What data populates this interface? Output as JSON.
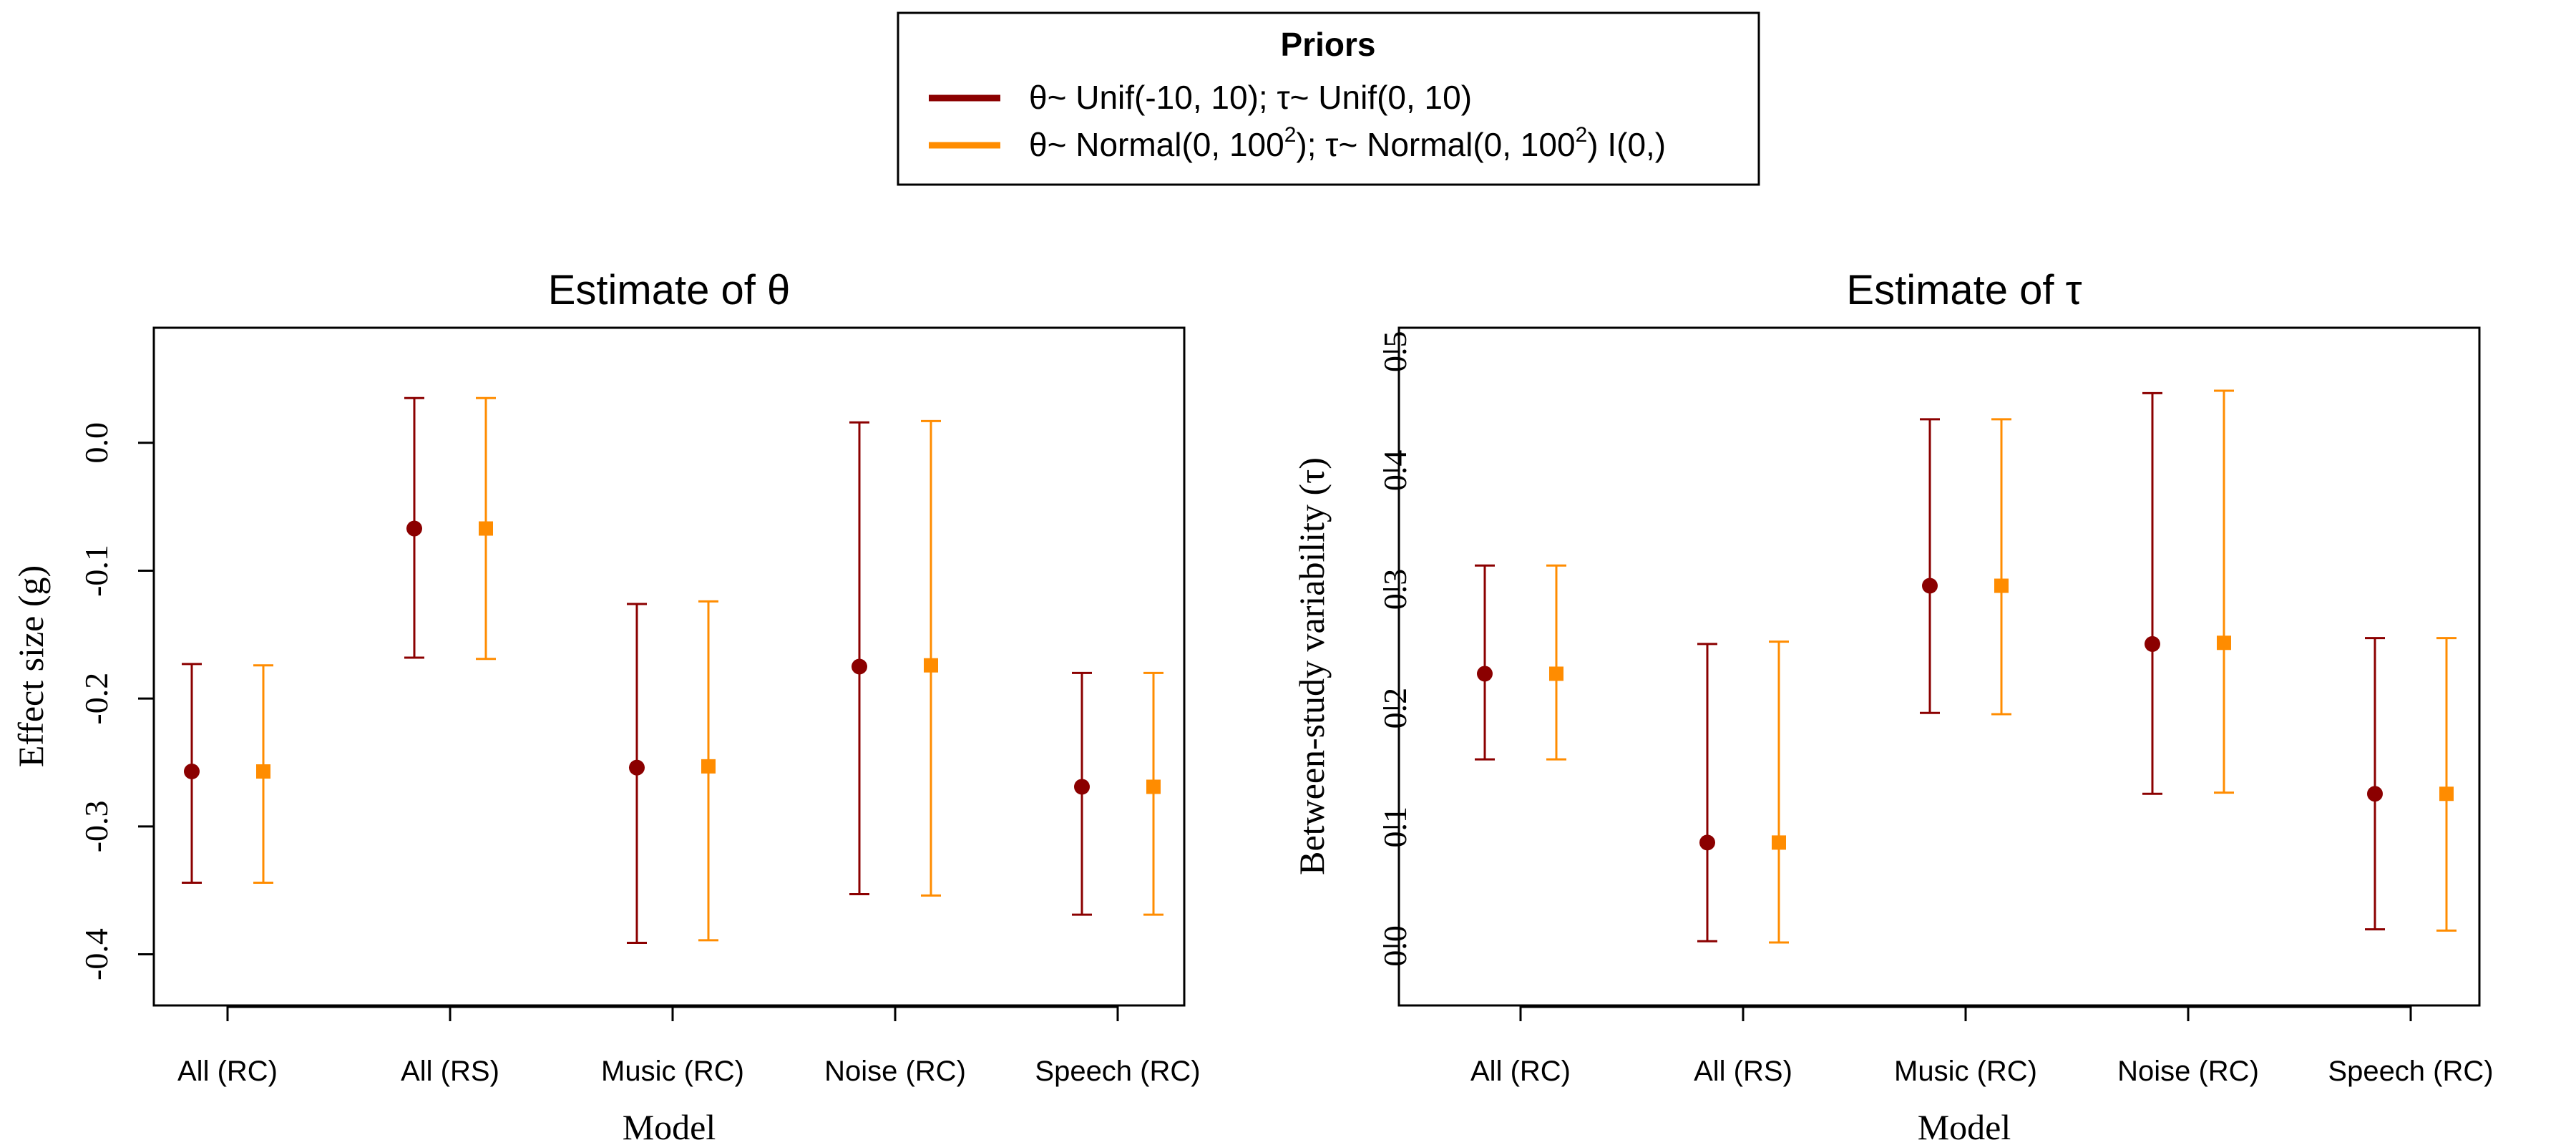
{
  "legend": {
    "title": "Priors",
    "entries": [
      {
        "theta_sym": "θ",
        "theta_text": "~ Unif(-10, 10); ",
        "tau_sym": "τ",
        "tau_text": "~ Unif(0, 10)",
        "color": "#8B0000"
      },
      {
        "theta_sym": "θ",
        "theta_text": "~ Normal(0, 100",
        "theta_sup": "2",
        "theta_text2": "); ",
        "tau_sym": "τ",
        "tau_text": "~ Normal(0, 100",
        "tau_sup": "2",
        "tau_text2": ") I(0,)",
        "color": "#FF8C00"
      }
    ]
  },
  "chart_data": [
    {
      "type": "errorbar",
      "title_prefix": "Estimate of ",
      "title_symbol": "θ",
      "xlabel": "Model",
      "ylabel": "Effect size (g)",
      "ylim": [
        -0.44,
        0.09
      ],
      "yticks": [
        -0.4,
        -0.3,
        -0.2,
        -0.1,
        0.0
      ],
      "ytick_labels": [
        "-0.4",
        "-0.3",
        "-0.2",
        "-0.1",
        "0.0"
      ],
      "categories": [
        "All (RC)",
        "All (RS)",
        "Music (RC)",
        "Noise (RC)",
        "Speech (RC)"
      ],
      "series": [
        {
          "color": "#8B0000",
          "marker": "circle",
          "estimate": [
            -0.257,
            -0.067,
            -0.254,
            -0.175,
            -0.269
          ],
          "lower": [
            -0.344,
            -0.168,
            -0.391,
            -0.353,
            -0.369
          ],
          "upper": [
            -0.173,
            0.035,
            -0.126,
            0.016,
            -0.18
          ]
        },
        {
          "color": "#FF8C00",
          "marker": "square",
          "estimate": [
            -0.257,
            -0.067,
            -0.253,
            -0.174,
            -0.269
          ],
          "lower": [
            -0.344,
            -0.169,
            -0.389,
            -0.354,
            -0.369
          ],
          "upper": [
            -0.174,
            0.035,
            -0.124,
            0.017,
            -0.18
          ]
        }
      ]
    },
    {
      "type": "errorbar",
      "title_prefix": "Estimate of ",
      "title_symbol": "τ",
      "xlabel": "Model",
      "ylabel_prefix": "Between-study variability (",
      "ylabel_symbol": "τ",
      "ylabel_suffix": ")",
      "ylim": [
        -0.05,
        0.52
      ],
      "yticks": [
        0.0,
        0.1,
        0.2,
        0.3,
        0.4,
        0.5
      ],
      "ytick_labels": [
        "0.0",
        "0.1",
        "0.2",
        "0.3",
        "0.4",
        "0.5"
      ],
      "categories": [
        "All (RC)",
        "All (RS)",
        "Music (RC)",
        "Noise (RC)",
        "Speech (RC)"
      ],
      "series": [
        {
          "color": "#8B0000",
          "marker": "circle",
          "estimate": [
            0.229,
            0.087,
            0.303,
            0.254,
            0.128
          ],
          "lower": [
            0.157,
            0.004,
            0.196,
            0.128,
            0.014
          ],
          "upper": [
            0.32,
            0.254,
            0.443,
            0.465,
            0.259
          ]
        },
        {
          "color": "#FF8C00",
          "marker": "square",
          "estimate": [
            0.229,
            0.087,
            0.303,
            0.255,
            0.128
          ],
          "lower": [
            0.157,
            0.003,
            0.195,
            0.129,
            0.013
          ],
          "upper": [
            0.32,
            0.256,
            0.443,
            0.467,
            0.259
          ]
        }
      ]
    }
  ]
}
